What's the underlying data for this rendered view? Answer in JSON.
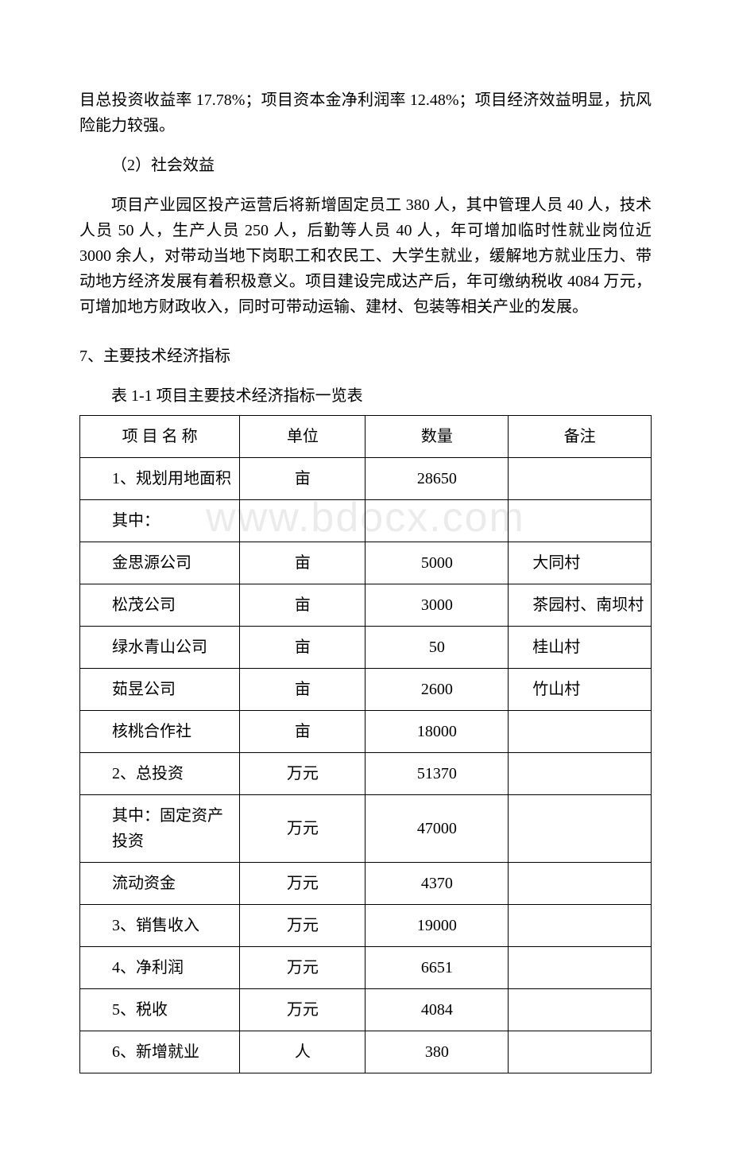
{
  "watermark": "www.bdocx.com",
  "para1": "目总投资收益率 17.78%；项目资本金净利润率 12.48%；项目经济效益明显，抗风险能力较强。",
  "subheading1": "（2）社会效益",
  "para2": "项目产业园区投产运营后将新增固定员工 380 人，其中管理人员 40 人，技术人员 50 人，生产人员 250 人，后勤等人员 40 人，年可增加临时性就业岗位近 3000 余人，对带动当地下岗职工和农民工、大学生就业，缓解地方就业压力、带动地方经济发展有着积极意义。项目建设完成达产后，年可缴纳税收 4084 万元，可增加地方财政收入，同时可带动运输、建材、包装等相关产业的发展。",
  "section7": "7、主要技术经济指标",
  "tableCaption": "表 1-1 项目主要技术经济指标一览表",
  "headers": {
    "name": "项 目 名 称",
    "unit": "单位",
    "qty": "数量",
    "note": "备注"
  },
  "rows": [
    {
      "name": "1、规划用地面积",
      "unit": "亩",
      "qty": "28650",
      "note": ""
    },
    {
      "name": "其中：",
      "unit": "",
      "qty": "",
      "note": ""
    },
    {
      "name": "金思源公司",
      "unit": "亩",
      "qty": "5000",
      "note": "大同村"
    },
    {
      "name": "松茂公司",
      "unit": "亩",
      "qty": "3000",
      "note": "茶园村、南坝村"
    },
    {
      "name": "绿水青山公司",
      "unit": "亩",
      "qty": "50",
      "note": "桂山村"
    },
    {
      "name": "茹昱公司",
      "unit": "亩",
      "qty": "2600",
      "note": "竹山村"
    },
    {
      "name": "核桃合作社",
      "unit": "亩",
      "qty": "18000",
      "note": ""
    },
    {
      "name": "2、总投资",
      "unit": "万元",
      "qty": "51370",
      "note": ""
    },
    {
      "name": "其中：固定资产投资",
      "unit": "万元",
      "qty": "47000",
      "note": ""
    },
    {
      "name": "流动资金",
      "unit": "万元",
      "qty": "4370",
      "note": ""
    },
    {
      "name": "3、销售收入",
      "unit": "万元",
      "qty": "19000",
      "note": ""
    },
    {
      "name": "4、净利润",
      "unit": "万元",
      "qty": "6651",
      "note": ""
    },
    {
      "name": "5、税收",
      "unit": "万元",
      "qty": "4084",
      "note": ""
    },
    {
      "name": "6、新增就业",
      "unit": "人",
      "qty": "380",
      "note": ""
    }
  ]
}
